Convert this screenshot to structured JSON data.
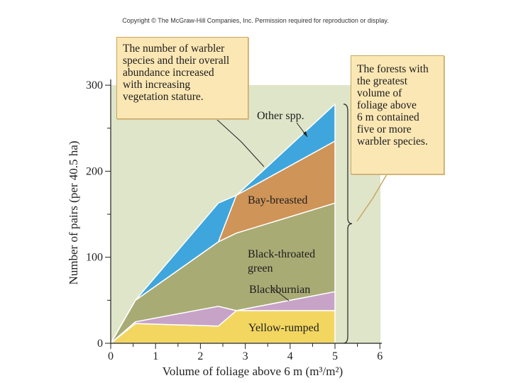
{
  "copyright": "Copyright © The McGraw-Hill Companies, Inc. Permission required for reproduction or display.",
  "callouts": {
    "left": [
      "The number of warbler",
      "species and their overall",
      "abundance increased",
      "with increasing",
      "vegetation stature."
    ],
    "right": [
      "The forests with",
      "the greatest",
      "volume of",
      "foliage above",
      "6 m contained",
      "five or more",
      "warbler species."
    ]
  },
  "colors": {
    "background": "#dfe5c9",
    "yellow_rumped": "#f2d660",
    "blackburnian": "#c7a3c7",
    "black_throated_green": "#a8ab74",
    "bay_breasted": "#cf9458",
    "other": "#3fa6dd",
    "callout": "#fbe7b4"
  },
  "chart_data": {
    "type": "area",
    "xlabel": "Volume of foliage above 6 m (m³/m²)",
    "ylabel": "Number of pairs (per 40.5 ha)",
    "xlim": [
      0,
      6
    ],
    "ylim": [
      0,
      300
    ],
    "xticks": [
      "0",
      "1",
      "2",
      "3",
      "4",
      "5",
      "6"
    ],
    "yticks": [
      "0",
      "100",
      "200",
      "300"
    ],
    "series": [
      {
        "name": "Yellow-rumped",
        "x": [
          0,
          0.55,
          2.4,
          2.8,
          5
        ],
        "values": [
          0,
          23,
          20,
          38,
          38
        ]
      },
      {
        "name": "Blackburnian",
        "x": [
          0,
          0.55,
          2.4,
          2.8,
          5
        ],
        "values": [
          0,
          25,
          43,
          38,
          60
        ]
      },
      {
        "name": "Black-throated green",
        "x": [
          0,
          0.55,
          2.4,
          2.8,
          5
        ],
        "values": [
          0,
          50,
          118,
          128,
          163
        ]
      },
      {
        "name": "Bay-breasted",
        "x": [
          0,
          0.55,
          2.4,
          2.8,
          5
        ],
        "values": [
          0,
          50,
          118,
          172,
          235
        ]
      },
      {
        "name": "Other spp.",
        "x": [
          0,
          0.55,
          2.4,
          2.8,
          5
        ],
        "values": [
          0,
          50,
          163,
          172,
          278
        ]
      }
    ]
  }
}
